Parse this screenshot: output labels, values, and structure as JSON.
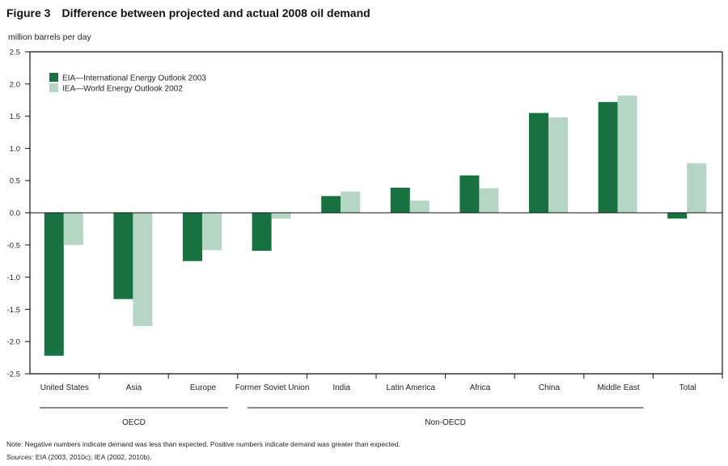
{
  "chart_data": {
    "type": "bar",
    "figure_label": "Figure 3",
    "title": "Difference between projected and actual 2008 oil demand",
    "ylabel": "million barrels per day",
    "xlabel": "",
    "ylim": [
      -2.5,
      2.5
    ],
    "yticks": [
      "2.5",
      "2.0",
      "1.5",
      "1.0",
      "0.5",
      "0.0",
      "-0.5",
      "-1.0",
      "-1.5",
      "-2.0",
      "-2.5"
    ],
    "ytick_values": [
      2.5,
      2.0,
      1.5,
      1.0,
      0.5,
      0.0,
      -0.5,
      -1.0,
      -1.5,
      -2.0,
      -2.5
    ],
    "categories": [
      "United States",
      "Asia",
      "Europe",
      "Former Soviet Union",
      "India",
      "Latin America",
      "Africa",
      "China",
      "Middle East",
      "Total"
    ],
    "series": [
      {
        "name": "EIA—International Energy Outlook 2003",
        "color": "#17723f",
        "values": [
          -2.22,
          -1.34,
          -0.75,
          -0.59,
          0.26,
          0.39,
          0.58,
          1.55,
          1.72,
          -0.09
        ]
      },
      {
        "name": "IEA—World Energy Outlook 2002",
        "color": "#b5d6c4",
        "values": [
          -0.5,
          -1.76,
          -0.58,
          -0.09,
          0.33,
          0.19,
          0.38,
          1.48,
          1.82,
          0.77
        ]
      }
    ],
    "groups": [
      {
        "label": "OECD",
        "from": 0,
        "to": 2
      },
      {
        "label": "Non-OECD",
        "from": 3,
        "to": 8
      }
    ],
    "legend_placement": "top-left",
    "grid": false
  },
  "note": "Note: Negative numbers indicate demand was less than expected. Positive numbers indicate demand was greater than expected.",
  "sources_label": "Sources:",
  "sources": "EIA (2003, 2010c); IEA (2002, 2010b)."
}
